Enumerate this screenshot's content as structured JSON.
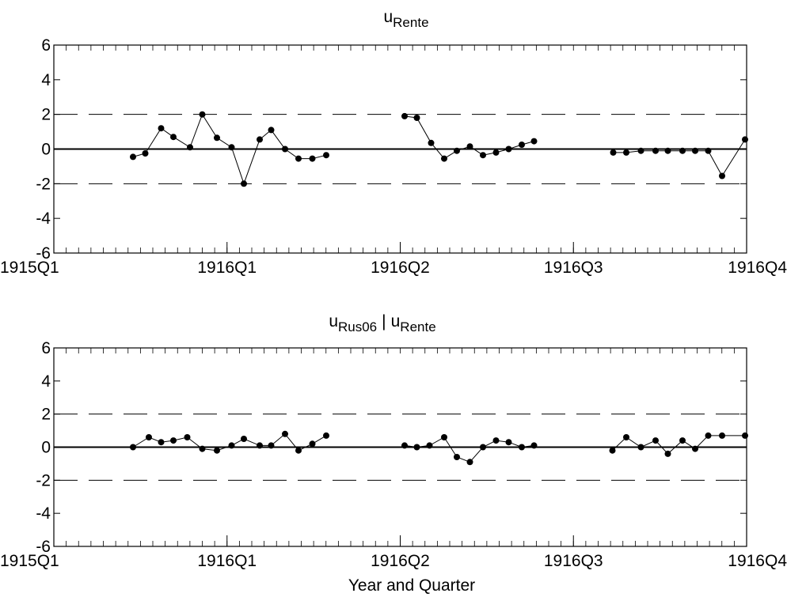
{
  "chart_data": [
    {
      "type": "line",
      "title": {
        "main": "u",
        "sub": "Rente"
      },
      "xlim": [
        1915.0,
        1916.75
      ],
      "ylim": [
        -6,
        6
      ],
      "yticks": [
        -6,
        -4,
        -2,
        0,
        2,
        4,
        6
      ],
      "xticks": [
        {
          "label": "1915Q1",
          "value": 1915.0
        },
        {
          "label": "1916Q1",
          "value": 1915.4375
        },
        {
          "label": "1916Q2",
          "value": 1915.875
        },
        {
          "label": "1916Q3",
          "value": 1916.3125
        },
        {
          "label": "1916Q4",
          "value": 1916.75
        }
      ],
      "reference_lines": [
        2,
        0,
        -2
      ],
      "segments": [
        {
          "x": [
            1915.2,
            1915.231,
            1915.271,
            1915.302,
            1915.344,
            1915.375,
            1915.412,
            1915.449,
            1915.48,
            1915.52,
            1915.549,
            1915.584,
            1915.618,
            1915.653,
            1915.688
          ],
          "y": [
            -0.45,
            -0.25,
            1.2,
            0.7,
            0.1,
            2.0,
            0.65,
            0.1,
            -2.0,
            0.55,
            1.1,
            0.0,
            -0.55,
            -0.55,
            -0.35
          ]
        },
        {
          "x": [
            1915.886,
            1915.917,
            1915.953,
            1915.986,
            1916.018,
            1916.051,
            1916.084,
            1916.117,
            1916.149,
            1916.182,
            1916.213
          ],
          "y": [
            1.9,
            1.8,
            0.35,
            -0.55,
            -0.1,
            0.15,
            -0.35,
            -0.2,
            0.0,
            0.25,
            0.45
          ]
        },
        {
          "x": [
            1916.413,
            1916.446,
            1916.483,
            1916.52,
            1916.551,
            1916.588,
            1916.62,
            1916.653,
            1916.688,
            1916.746
          ],
          "y": [
            -0.2,
            -0.2,
            -0.1,
            -0.1,
            -0.1,
            -0.1,
            -0.1,
            -0.1,
            -1.55,
            0.55
          ]
        }
      ]
    },
    {
      "type": "line",
      "title": {
        "main": "u",
        "sub": "Rus06",
        "sep": "|",
        "main2": "u",
        "sub2": "Rente"
      },
      "xlim": [
        1915.0,
        1916.75
      ],
      "ylim": [
        -6,
        6
      ],
      "yticks": [
        -6,
        -4,
        -2,
        0,
        2,
        4,
        6
      ],
      "xticks": [
        {
          "label": "1915Q1",
          "value": 1915.0
        },
        {
          "label": "1916Q1",
          "value": 1915.4375
        },
        {
          "label": "1916Q2",
          "value": 1915.875
        },
        {
          "label": "1916Q3",
          "value": 1916.3125
        },
        {
          "label": "1916Q4",
          "value": 1916.75
        }
      ],
      "reference_lines": [
        2,
        0,
        -2
      ],
      "xlabel": "Year and Quarter",
      "segments": [
        {
          "x": [
            1915.2,
            1915.24,
            1915.271,
            1915.302,
            1915.337,
            1915.375,
            1915.412,
            1915.449,
            1915.48,
            1915.52,
            1915.549,
            1915.584,
            1915.618,
            1915.653,
            1915.688
          ],
          "y": [
            0.0,
            0.6,
            0.3,
            0.4,
            0.6,
            -0.1,
            -0.2,
            0.1,
            0.5,
            0.1,
            0.1,
            0.8,
            -0.2,
            0.2,
            0.7
          ]
        },
        {
          "x": [
            1915.886,
            1915.917,
            1915.949,
            1915.986,
            1916.018,
            1916.051,
            1916.084,
            1916.117,
            1916.149,
            1916.182,
            1916.213
          ],
          "y": [
            0.1,
            0.0,
            0.1,
            0.6,
            -0.6,
            -0.9,
            0.0,
            0.4,
            0.3,
            0.0,
            0.1
          ]
        },
        {
          "x": [
            1916.411,
            1916.446,
            1916.483,
            1916.52,
            1916.551,
            1916.588,
            1916.62,
            1916.653,
            1916.688,
            1916.746
          ],
          "y": [
            -0.2,
            0.6,
            0.0,
            0.4,
            -0.4,
            0.4,
            -0.1,
            0.7,
            0.7,
            0.7
          ]
        }
      ]
    }
  ]
}
